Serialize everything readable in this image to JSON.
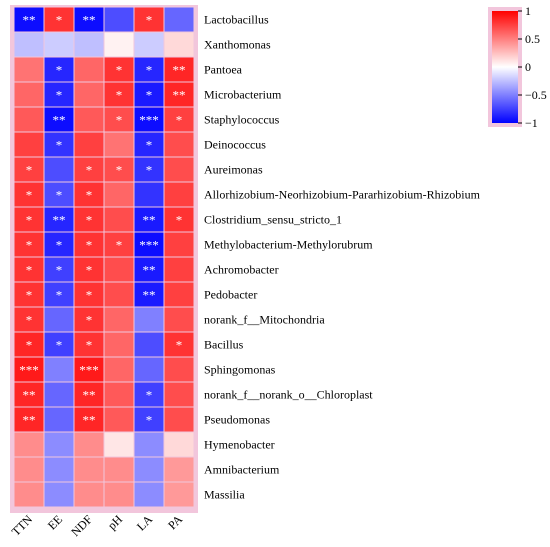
{
  "chart_data": {
    "type": "heatmap",
    "columns": [
      "TTN",
      "EE",
      "NDF",
      "pH",
      "LA",
      "PA"
    ],
    "rows": [
      "Lactobacillus",
      "Xanthomonas",
      "Pantoea",
      "Microbacterium",
      "Staphylococcus",
      "Deinococcus",
      "Aureimonas",
      "Allorhizobium-Neorhizobium-Pararhizobium-Rhizobium",
      "Clostridium_sensu_stricto_1",
      "Methylobacterium-Methylorubrum",
      "Achromobacter",
      "Pedobacter",
      "norank_f__Mitochondria",
      "Bacillus",
      "Sphingomonas",
      "norank_f__norank_o__Chloroplast",
      "Pseudomonas",
      "Hymenobacter",
      "Amnibacterium",
      "Massilia"
    ],
    "values": [
      [
        -0.95,
        0.8,
        -0.95,
        -0.7,
        0.8,
        -0.6
      ],
      [
        -0.25,
        -0.2,
        -0.25,
        0.05,
        -0.2,
        0.15
      ],
      [
        0.55,
        -0.85,
        0.6,
        0.8,
        -0.85,
        0.85
      ],
      [
        0.6,
        -0.85,
        0.6,
        0.8,
        -0.9,
        0.85
      ],
      [
        0.65,
        -0.95,
        0.65,
        0.7,
        -0.95,
        0.75
      ],
      [
        0.75,
        -0.8,
        0.75,
        0.55,
        -0.85,
        0.7
      ],
      [
        0.75,
        -0.7,
        0.75,
        0.7,
        -0.8,
        0.7
      ],
      [
        0.8,
        -0.7,
        0.8,
        0.6,
        -0.8,
        0.75
      ],
      [
        0.8,
        -0.85,
        0.8,
        0.7,
        -0.9,
        0.8
      ],
      [
        0.8,
        -0.85,
        0.8,
        0.75,
        -0.95,
        0.75
      ],
      [
        0.8,
        -0.75,
        0.8,
        0.7,
        -0.9,
        0.75
      ],
      [
        0.8,
        -0.75,
        0.8,
        0.7,
        -0.9,
        0.75
      ],
      [
        0.8,
        -0.6,
        0.8,
        0.6,
        -0.5,
        0.7
      ],
      [
        0.85,
        -0.75,
        0.8,
        0.6,
        -0.7,
        0.8
      ],
      [
        0.9,
        -0.5,
        0.9,
        0.6,
        -0.6,
        0.7
      ],
      [
        0.85,
        -0.6,
        0.85,
        0.65,
        -0.75,
        0.7
      ],
      [
        0.85,
        -0.6,
        0.85,
        0.65,
        -0.75,
        0.7
      ],
      [
        0.45,
        -0.45,
        0.45,
        0.1,
        -0.45,
        0.15
      ],
      [
        0.45,
        -0.45,
        0.45,
        0.45,
        -0.45,
        0.4
      ],
      [
        0.45,
        -0.45,
        0.45,
        0.45,
        -0.45,
        0.4
      ]
    ],
    "significance": [
      [
        "**",
        "*",
        "**",
        "",
        "*",
        ""
      ],
      [
        "",
        "",
        "",
        "",
        "",
        ""
      ],
      [
        "",
        "*",
        "",
        "*",
        "*",
        "**"
      ],
      [
        "",
        "*",
        "",
        "*",
        "*",
        "**"
      ],
      [
        "",
        "**",
        "",
        "*",
        "***",
        "*"
      ],
      [
        "",
        "*",
        "",
        "",
        "*",
        ""
      ],
      [
        "*",
        "",
        "*",
        "*",
        "*",
        ""
      ],
      [
        "*",
        "*",
        "*",
        "",
        "",
        ""
      ],
      [
        "*",
        "**",
        "*",
        "",
        "**",
        "*"
      ],
      [
        "*",
        "*",
        "*",
        "*",
        "***",
        ""
      ],
      [
        "*",
        "*",
        "*",
        "",
        "**",
        ""
      ],
      [
        "*",
        "*",
        "*",
        "",
        "**",
        ""
      ],
      [
        "*",
        "",
        "*",
        "",
        "",
        ""
      ],
      [
        "*",
        "*",
        "*",
        "",
        "",
        "*"
      ],
      [
        "***",
        "",
        "***",
        "",
        "",
        ""
      ],
      [
        "**",
        "",
        "**",
        "",
        "*",
        ""
      ],
      [
        "**",
        "",
        "**",
        "",
        "*",
        ""
      ],
      [
        "",
        "",
        "",
        "",
        "",
        ""
      ],
      [
        "",
        "",
        "",
        "",
        "",
        ""
      ],
      [
        "",
        "",
        "",
        "",
        "",
        ""
      ]
    ],
    "colorbar": {
      "min": -1,
      "max": 1,
      "ticks": [
        1,
        0.5,
        0,
        -0.5,
        -1
      ],
      "tick_labels": [
        "1",
        "0.5",
        "0",
        "−0.5",
        "−1"
      ],
      "low_color": "#0000ff",
      "mid_color": "#ffffff",
      "high_color": "#ff0000"
    },
    "title": "",
    "xlabel": "",
    "ylabel": ""
  }
}
